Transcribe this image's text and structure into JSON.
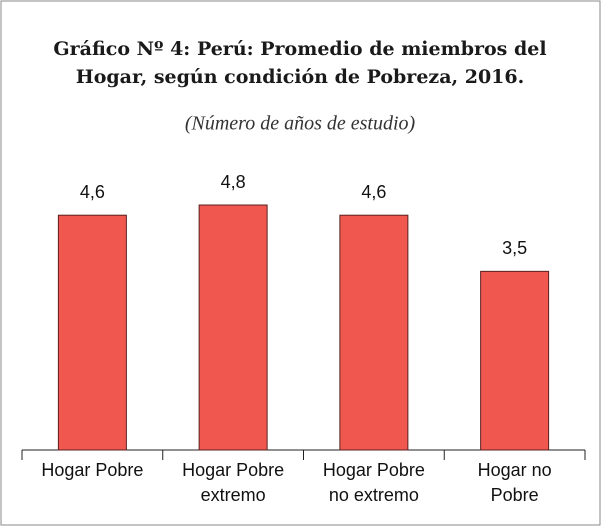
{
  "chart_data": {
    "type": "bar",
    "title": "Gráfico Nº 4: Perú: Promedio de miembros del\nHogar, según condición de Pobreza, 2016.",
    "subtitle": "(Número de años de estudio)",
    "categories": [
      "Hogar Pobre",
      "Hogar Pobre\nextremo",
      "Hogar Pobre\nno extremo",
      "Hogar no\nPobre"
    ],
    "values": [
      4.6,
      4.8,
      4.6,
      3.5
    ],
    "value_labels": [
      "4,6",
      "4,8",
      "4,6",
      "3,5"
    ],
    "color": "#f0574f"
  }
}
